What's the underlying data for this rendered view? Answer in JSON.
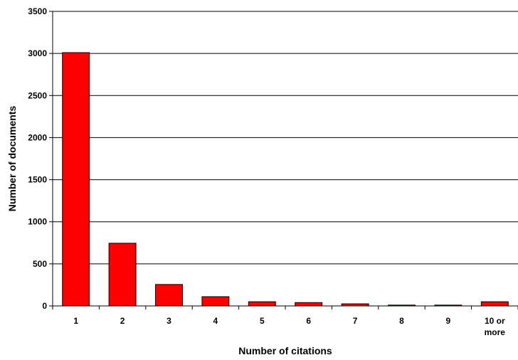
{
  "chart_data": {
    "type": "bar",
    "title": "",
    "xlabel": "Number of citations",
    "ylabel": "Number of documents",
    "categories": [
      "1",
      "2",
      "3",
      "4",
      "5",
      "6",
      "7",
      "8",
      "9",
      "10 or more"
    ],
    "values": [
      3010,
      745,
      255,
      110,
      50,
      40,
      25,
      10,
      10,
      50
    ],
    "ylim": [
      0,
      3500
    ],
    "yticks": [
      0,
      500,
      1000,
      1500,
      2000,
      2500,
      3000,
      3500
    ],
    "grid": true,
    "legend": "none",
    "bar_color": "#ff0000"
  }
}
